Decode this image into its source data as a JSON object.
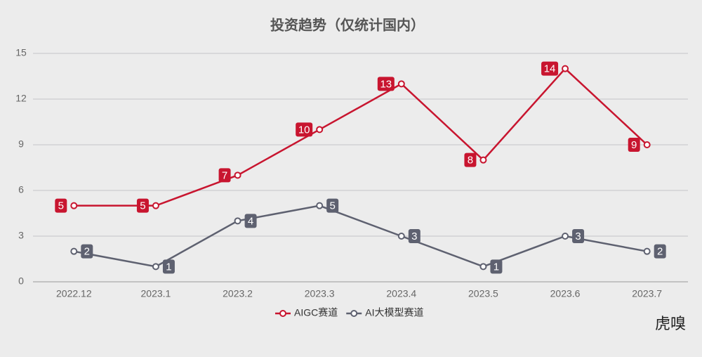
{
  "chart_data": {
    "type": "line",
    "title": "投资趋势（仅统计国内）",
    "categories": [
      "2022.12",
      "2023.1",
      "2023.2",
      "2023.3",
      "2023.4",
      "2023.5",
      "2023.6",
      "2023.7"
    ],
    "series": [
      {
        "name": "AIGC赛道",
        "color": "#c8152f",
        "values": [
          5,
          5,
          7,
          10,
          13,
          8,
          14,
          9
        ]
      },
      {
        "name": "AI大模型赛道",
        "color": "#5e6170",
        "values": [
          2,
          1,
          4,
          5,
          3,
          1,
          3,
          2
        ]
      }
    ],
    "ylim": [
      0,
      15
    ],
    "yticks": [
      0,
      3,
      6,
      9,
      12,
      15
    ],
    "grid": true,
    "legend": "bottom",
    "watermark": "虎嗅"
  }
}
